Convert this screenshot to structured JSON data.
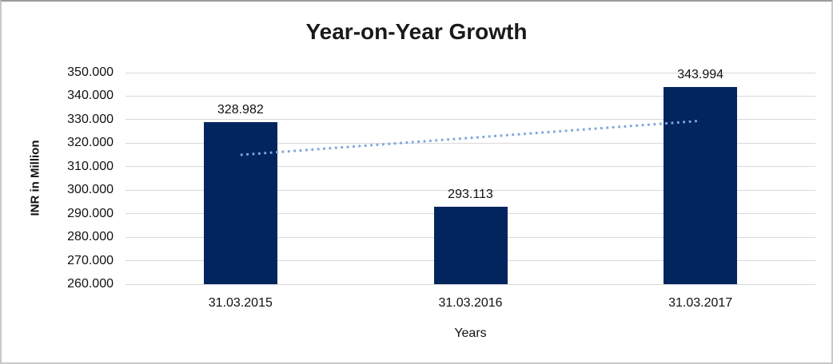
{
  "chart_data": {
    "type": "bar",
    "title": "Year-on-Year Growth",
    "xlabel": "Years",
    "ylabel": "INR in Million",
    "categories": [
      "31.03.2015",
      "31.03.2016",
      "31.03.2017"
    ],
    "values": [
      328.982,
      293.113,
      343.994
    ],
    "data_labels": [
      "328.982",
      "293.113",
      "343.994"
    ],
    "ytick_labels": [
      "350.000",
      "340.000",
      "330.000",
      "320.000",
      "310.000",
      "300.000",
      "290.000",
      "280.000",
      "270.000",
      "260.000"
    ],
    "ylim": [
      260,
      350
    ],
    "ytick_step": 10,
    "grid": true,
    "legend": "none",
    "bar_color": "#03255e",
    "gridline_color": "#d9d9d9",
    "text_color": "#111111",
    "frame_border_color": "#c9c9c9",
    "trendline": {
      "type": "linear",
      "style": "dotted",
      "color": "#7fa6db",
      "start_value": 315.0,
      "end_value": 329.5
    }
  }
}
